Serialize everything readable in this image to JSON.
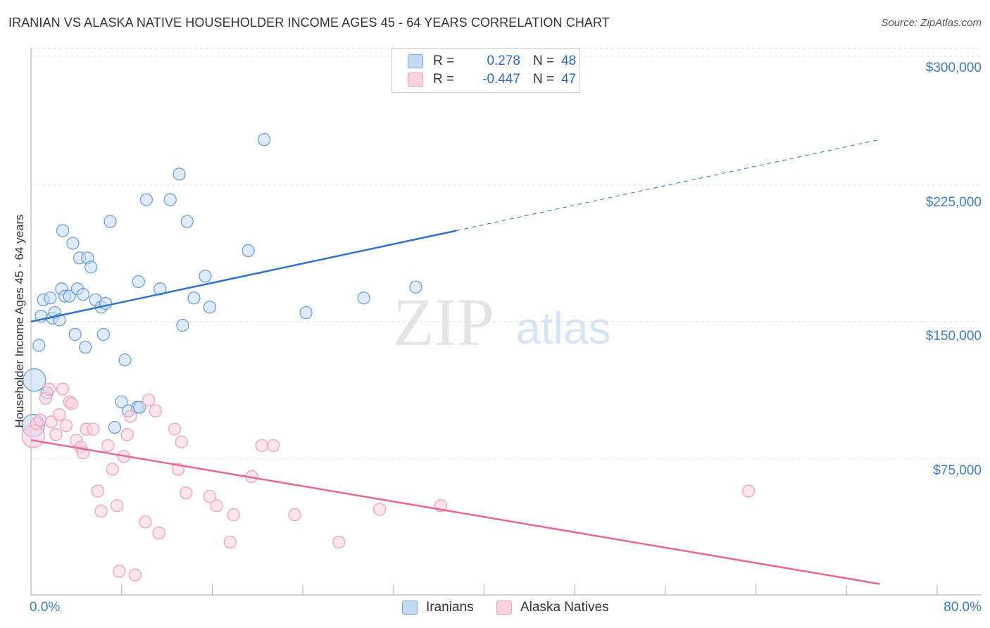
{
  "title": "IRANIAN VS ALASKA NATIVE HOUSEHOLDER INCOME AGES 45 - 64 YEARS CORRELATION CHART",
  "source": "Source: ZipAtlas.com",
  "watermark": {
    "zip": "ZIP",
    "atlas": "atlas"
  },
  "legend": {
    "rows": [
      {
        "r_label": "R =",
        "r_value": "0.278",
        "n_label": "N =",
        "n_value": "48",
        "color": "blue"
      },
      {
        "r_label": "R =",
        "r_value": "-0.447",
        "n_label": "N =",
        "n_value": "47",
        "color": "pink"
      }
    ]
  },
  "colors": {
    "iranians_fill": "#c5daf5",
    "iranians_stroke": "#6f9fd8",
    "iranians_line": "#2f73cc",
    "alaska_fill": "#fbcfdd",
    "alaska_stroke": "#f0a0bd",
    "alaska_line": "#e8659a",
    "tick_label": "#3d7cc9",
    "grid": "#dddddd"
  },
  "chart_data": {
    "type": "scatter",
    "title": "IRANIAN VS ALASKA NATIVE HOUSEHOLDER INCOME AGES 45 - 64 YEARS CORRELATION CHART",
    "xlabel": "",
    "ylabel": "Householder Income Ages 45 - 64 years",
    "xlim": [
      0,
      80
    ],
    "ylim": [
      0,
      315000
    ],
    "x_tick_labels": [
      "0.0%",
      "80.0%"
    ],
    "y_ticks": [
      75000,
      150000,
      225000,
      300000
    ],
    "y_tick_labels": [
      "$75,000",
      "$150,000",
      "$225,000",
      "$300,000"
    ],
    "grid": true,
    "legend_position": "top-center",
    "series": [
      {
        "name": "Iranians",
        "r": 0.278,
        "n": 48,
        "trend": {
          "x": [
            0,
            37.6
          ],
          "y": [
            150000,
            200000
          ],
          "dashed_to": [
            75,
            250000
          ]
        },
        "points": [
          [
            0.2,
            93000
          ],
          [
            0.3,
            118000
          ],
          [
            0.7,
            137000
          ],
          [
            0.9,
            153000
          ],
          [
            1.1,
            162000
          ],
          [
            1.4,
            111000
          ],
          [
            1.7,
            163000
          ],
          [
            1.9,
            152000
          ],
          [
            2.1,
            155000
          ],
          [
            2.5,
            151000
          ],
          [
            2.7,
            168000
          ],
          [
            2.8,
            200000
          ],
          [
            3.0,
            164000
          ],
          [
            3.4,
            164000
          ],
          [
            3.7,
            193000
          ],
          [
            3.9,
            143000
          ],
          [
            4.1,
            168000
          ],
          [
            4.3,
            185000
          ],
          [
            4.6,
            165000
          ],
          [
            4.8,
            136000
          ],
          [
            5.0,
            185000
          ],
          [
            5.3,
            180000
          ],
          [
            5.7,
            162000
          ],
          [
            6.2,
            158000
          ],
          [
            6.4,
            143000
          ],
          [
            6.6,
            160000
          ],
          [
            7.0,
            205000
          ],
          [
            7.4,
            92000
          ],
          [
            8.0,
            106000
          ],
          [
            8.3,
            129000
          ],
          [
            8.6,
            101000
          ],
          [
            9.4,
            103000
          ],
          [
            9.6,
            103000
          ],
          [
            9.5,
            172000
          ],
          [
            10.2,
            217000
          ],
          [
            11.4,
            168000
          ],
          [
            12.3,
            217000
          ],
          [
            13.1,
            231000
          ],
          [
            13.4,
            148000
          ],
          [
            13.8,
            205000
          ],
          [
            14.4,
            163000
          ],
          [
            15.4,
            175000
          ],
          [
            15.8,
            158000
          ],
          [
            19.2,
            189000
          ],
          [
            20.6,
            250000
          ],
          [
            24.3,
            155000
          ],
          [
            29.4,
            163000
          ],
          [
            34.0,
            169000
          ]
        ]
      },
      {
        "name": "Alaska Natives",
        "r": -0.447,
        "n": 47,
        "trend": {
          "x": [
            0,
            75
          ],
          "y": [
            85000,
            6000
          ]
        },
        "points": [
          [
            0.2,
            87000
          ],
          [
            0.5,
            94000
          ],
          [
            0.8,
            96000
          ],
          [
            1.3,
            108000
          ],
          [
            1.6,
            113000
          ],
          [
            1.8,
            95000
          ],
          [
            2.2,
            88000
          ],
          [
            2.5,
            99000
          ],
          [
            2.8,
            113000
          ],
          [
            3.1,
            93000
          ],
          [
            3.4,
            106000
          ],
          [
            3.6,
            105000
          ],
          [
            4.0,
            85000
          ],
          [
            4.4,
            81000
          ],
          [
            4.6,
            78000
          ],
          [
            4.9,
            91000
          ],
          [
            5.5,
            91000
          ],
          [
            5.9,
            57000
          ],
          [
            6.2,
            46000
          ],
          [
            6.8,
            82000
          ],
          [
            7.2,
            69000
          ],
          [
            7.6,
            49000
          ],
          [
            7.8,
            13000
          ],
          [
            8.2,
            76000
          ],
          [
            8.5,
            88000
          ],
          [
            8.8,
            98000
          ],
          [
            9.2,
            11000
          ],
          [
            10.1,
            40000
          ],
          [
            10.4,
            107000
          ],
          [
            11.0,
            101000
          ],
          [
            11.3,
            34000
          ],
          [
            12.7,
            91000
          ],
          [
            13.0,
            69000
          ],
          [
            13.3,
            84000
          ],
          [
            13.7,
            56000
          ],
          [
            15.8,
            54000
          ],
          [
            16.4,
            49000
          ],
          [
            17.6,
            29000
          ],
          [
            17.9,
            44000
          ],
          [
            19.5,
            65000
          ],
          [
            20.4,
            82000
          ],
          [
            21.4,
            82000
          ],
          [
            23.3,
            44000
          ],
          [
            27.2,
            29000
          ],
          [
            30.8,
            47000
          ],
          [
            36.2,
            49000
          ],
          [
            63.4,
            57000
          ]
        ]
      }
    ]
  }
}
